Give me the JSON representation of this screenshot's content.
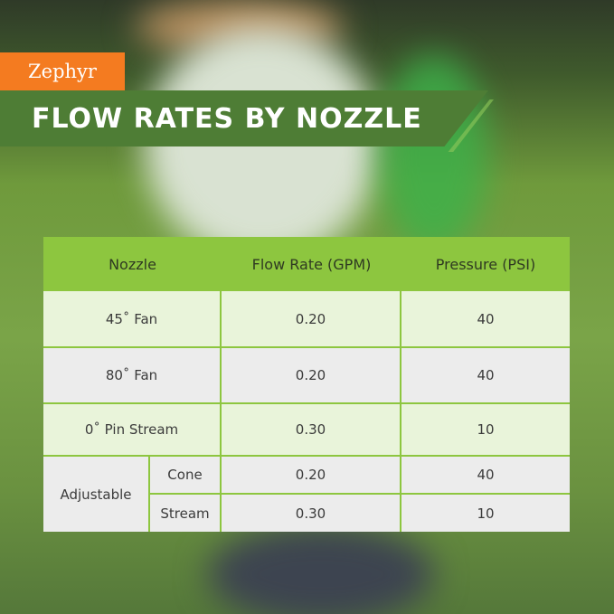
{
  "brand": "Zephyr",
  "title": "FLOW RATES BY NOZZLE",
  "colors": {
    "brand": "#f47b20",
    "banner": "#4e7d35",
    "header": "#8dc63f"
  },
  "table": {
    "headers": [
      "Nozzle",
      "Flow Rate (GPM)",
      "Pressure (PSI)"
    ],
    "rows": [
      {
        "nozzle": "45˚ Fan",
        "flow": "0.20",
        "pressure": "40"
      },
      {
        "nozzle": "80˚ Fan",
        "flow": "0.20",
        "pressure": "40"
      },
      {
        "nozzle": "0˚ Pin Stream",
        "flow": "0.30",
        "pressure": "10"
      }
    ],
    "adjustable": {
      "label": "Adjustable",
      "rows": [
        {
          "mode": "Cone",
          "flow": "0.20",
          "pressure": "40"
        },
        {
          "mode": "Stream",
          "flow": "0.30",
          "pressure": "10"
        }
      ]
    }
  }
}
